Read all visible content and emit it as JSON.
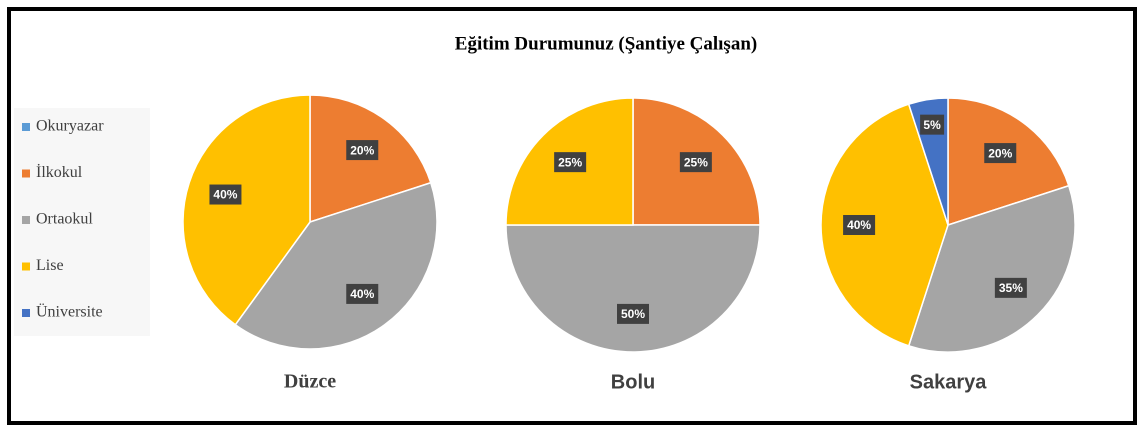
{
  "chart_data": {
    "type": "pie",
    "title": "Eğitim Durumunuz (Şantiye Çalışan)",
    "categories": [
      "Okuryazar",
      "İlkokul",
      "Ortaokul",
      "Lise",
      "Üniversite"
    ],
    "colors": [
      "#5b9bd5",
      "#ed7d31",
      "#a5a5a5",
      "#ffc000",
      "#4472c4"
    ],
    "series": [
      {
        "name": "Düzce",
        "values": [
          0,
          20,
          40,
          40,
          0
        ],
        "value_labels": [
          null,
          "20%",
          "40%",
          "40%",
          null
        ]
      },
      {
        "name": "Bolu",
        "values": [
          0,
          25,
          50,
          25,
          0
        ],
        "value_labels": [
          null,
          "25%",
          "50%",
          "25%",
          null
        ]
      },
      {
        "name": "Sakarya",
        "values": [
          0,
          20,
          35,
          40,
          5
        ],
        "value_labels": [
          null,
          "20%",
          "35%",
          "40%",
          "5%"
        ]
      }
    ],
    "legend": "left"
  }
}
